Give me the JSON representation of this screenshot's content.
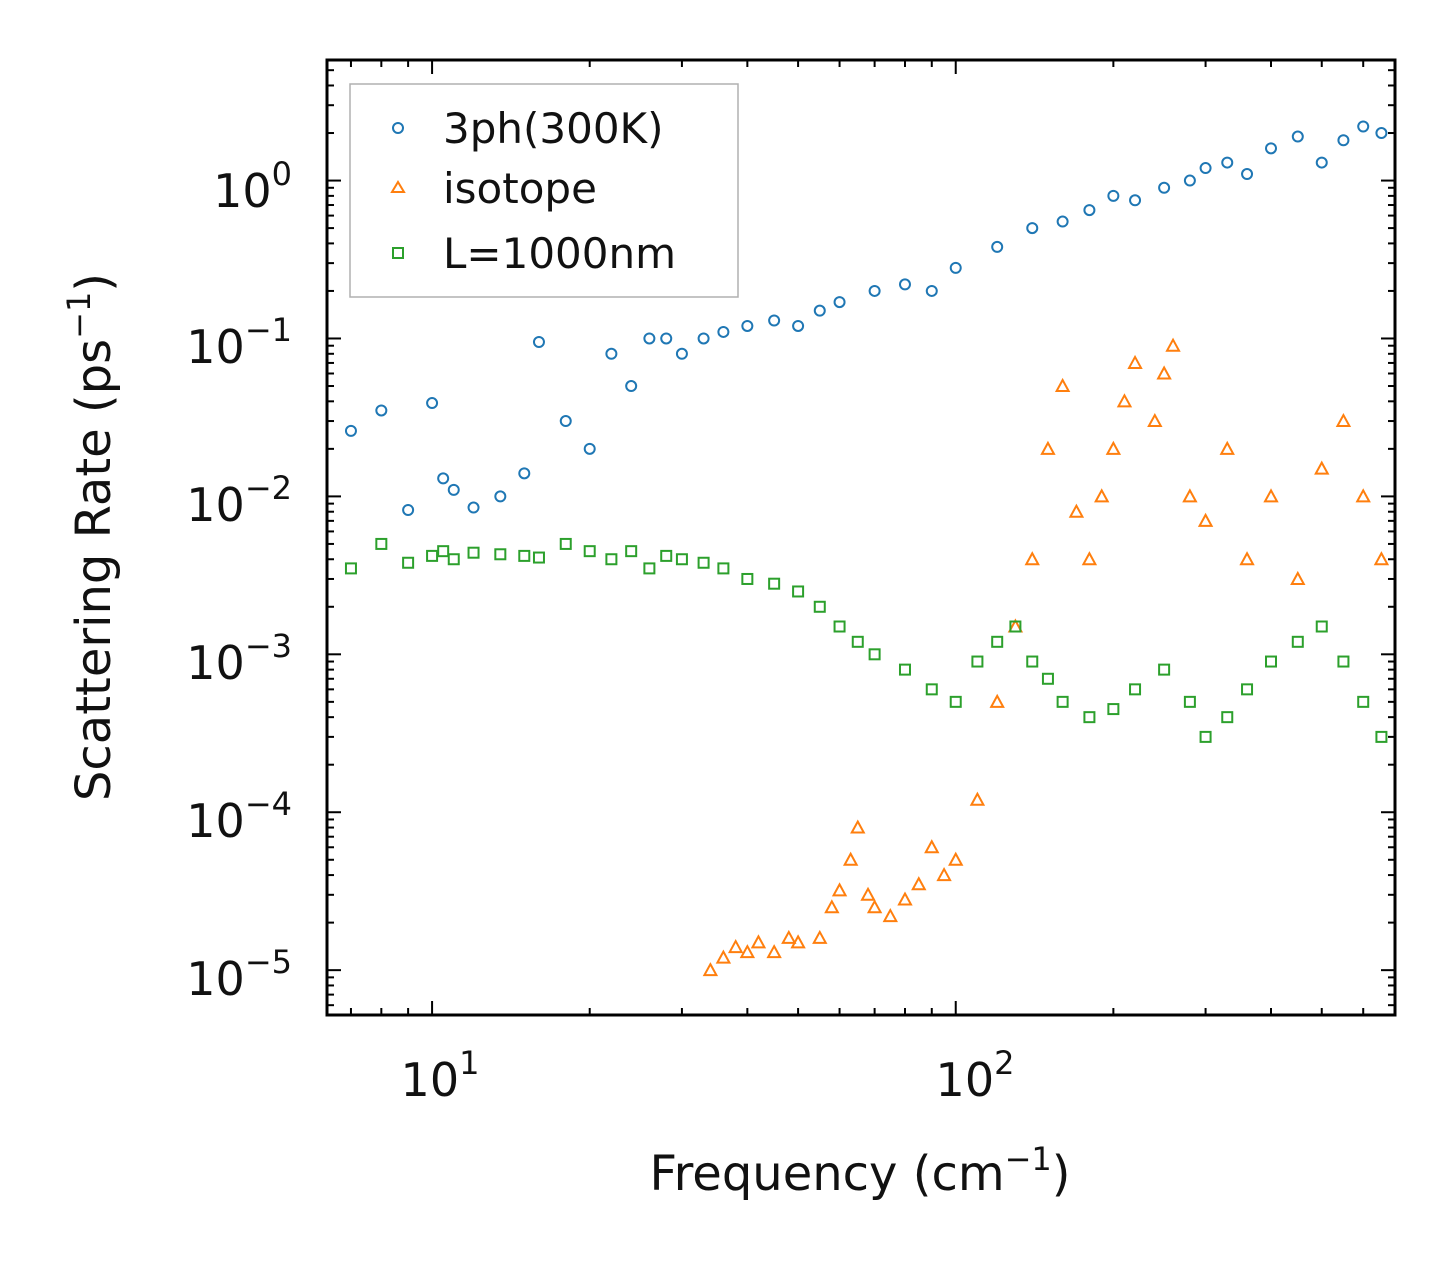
{
  "chart_data": {
    "type": "scatter",
    "title": "",
    "xlabel": "Frequency",
    "xlabel_unit": "cm",
    "xlabel_exp": "−1",
    "ylabel": "Scattering Rate",
    "ylabel_unit": "ps",
    "ylabel_exp": "−1",
    "xscale": "log",
    "yscale": "log",
    "xlim": [
      6.3,
      690
    ],
    "ylim": [
      5.2e-06,
      5.8
    ],
    "x_ticks": [
      {
        "value": 10,
        "base": "10",
        "exp": "1"
      },
      {
        "value": 100,
        "base": "10",
        "exp": "2"
      }
    ],
    "y_ticks": [
      {
        "value": 1,
        "base": "10",
        "exp": "0"
      },
      {
        "value": 0.1,
        "base": "10",
        "exp": "−1"
      },
      {
        "value": 0.01,
        "base": "10",
        "exp": "−2"
      },
      {
        "value": 0.001,
        "base": "10",
        "exp": "−3"
      },
      {
        "value": 0.0001,
        "base": "10",
        "exp": "−4"
      },
      {
        "value": 1e-05,
        "base": "10",
        "exp": "−5"
      }
    ],
    "legend_position": "top-left",
    "series": [
      {
        "name": "3ph(300K)",
        "marker": "circle",
        "color": "#1f77b4",
        "x": [
          7,
          8,
          9,
          10,
          10.5,
          11,
          12,
          13.5,
          15,
          16,
          18,
          20,
          22,
          24,
          26,
          28,
          30,
          33,
          36,
          40,
          45,
          50,
          55,
          60,
          70,
          80,
          90,
          100,
          120,
          140,
          160,
          180,
          200,
          220,
          250,
          280,
          300,
          330,
          360,
          400,
          450,
          500,
          550,
          600,
          650
        ],
        "y": [
          0.026,
          0.035,
          0.0082,
          0.039,
          0.013,
          0.011,
          0.0085,
          0.01,
          0.014,
          0.095,
          0.03,
          0.02,
          0.08,
          0.05,
          0.1,
          0.1,
          0.08,
          0.1,
          0.11,
          0.12,
          0.13,
          0.12,
          0.15,
          0.17,
          0.2,
          0.22,
          0.2,
          0.28,
          0.38,
          0.5,
          0.55,
          0.65,
          0.8,
          0.75,
          0.9,
          1.0,
          1.2,
          1.3,
          1.1,
          1.6,
          1.9,
          1.3,
          1.8,
          2.2,
          2.0
        ]
      },
      {
        "name": "isotope",
        "marker": "triangle",
        "color": "#ff7f0e",
        "x": [
          34,
          36,
          38,
          40,
          42,
          45,
          48,
          50,
          55,
          58,
          60,
          63,
          65,
          68,
          70,
          75,
          80,
          85,
          90,
          95,
          100,
          110,
          120,
          130,
          140,
          150,
          160,
          170,
          180,
          190,
          200,
          210,
          220,
          240,
          250,
          260,
          280,
          300,
          330,
          360,
          400,
          450,
          500,
          550,
          600,
          650
        ],
        "y": [
          1e-05,
          1.2e-05,
          1.4e-05,
          1.3e-05,
          1.5e-05,
          1.3e-05,
          1.6e-05,
          1.5e-05,
          1.6e-05,
          2.5e-05,
          3.2e-05,
          5e-05,
          8e-05,
          3e-05,
          2.5e-05,
          2.2e-05,
          2.8e-05,
          3.5e-05,
          6e-05,
          4e-05,
          5e-05,
          0.00012,
          0.0005,
          0.0015,
          0.004,
          0.02,
          0.05,
          0.008,
          0.004,
          0.01,
          0.02,
          0.04,
          0.07,
          0.03,
          0.06,
          0.09,
          0.01,
          0.007,
          0.02,
          0.004,
          0.01,
          0.003,
          0.015,
          0.03,
          0.01,
          0.004
        ]
      },
      {
        "name": "L=1000nm",
        "marker": "square",
        "color": "#2ca02c",
        "x": [
          7,
          8,
          9,
          10,
          10.5,
          11,
          12,
          13.5,
          15,
          16,
          18,
          20,
          22,
          24,
          26,
          28,
          30,
          33,
          36,
          40,
          45,
          50,
          55,
          60,
          65,
          70,
          80,
          90,
          100,
          110,
          120,
          130,
          140,
          150,
          160,
          180,
          200,
          220,
          250,
          280,
          300,
          330,
          360,
          400,
          450,
          500,
          550,
          600,
          650
        ],
        "y": [
          0.0035,
          0.005,
          0.0038,
          0.0042,
          0.0045,
          0.004,
          0.0044,
          0.0043,
          0.0042,
          0.0041,
          0.005,
          0.0045,
          0.004,
          0.0045,
          0.0035,
          0.0042,
          0.004,
          0.0038,
          0.0035,
          0.003,
          0.0028,
          0.0025,
          0.002,
          0.0015,
          0.0012,
          0.001,
          0.0008,
          0.0006,
          0.0005,
          0.0009,
          0.0012,
          0.0015,
          0.0009,
          0.0007,
          0.0005,
          0.0004,
          0.00045,
          0.0006,
          0.0008,
          0.0005,
          0.0003,
          0.0004,
          0.0006,
          0.0009,
          0.0012,
          0.0015,
          0.0009,
          0.0005,
          0.0003
        ]
      }
    ]
  }
}
